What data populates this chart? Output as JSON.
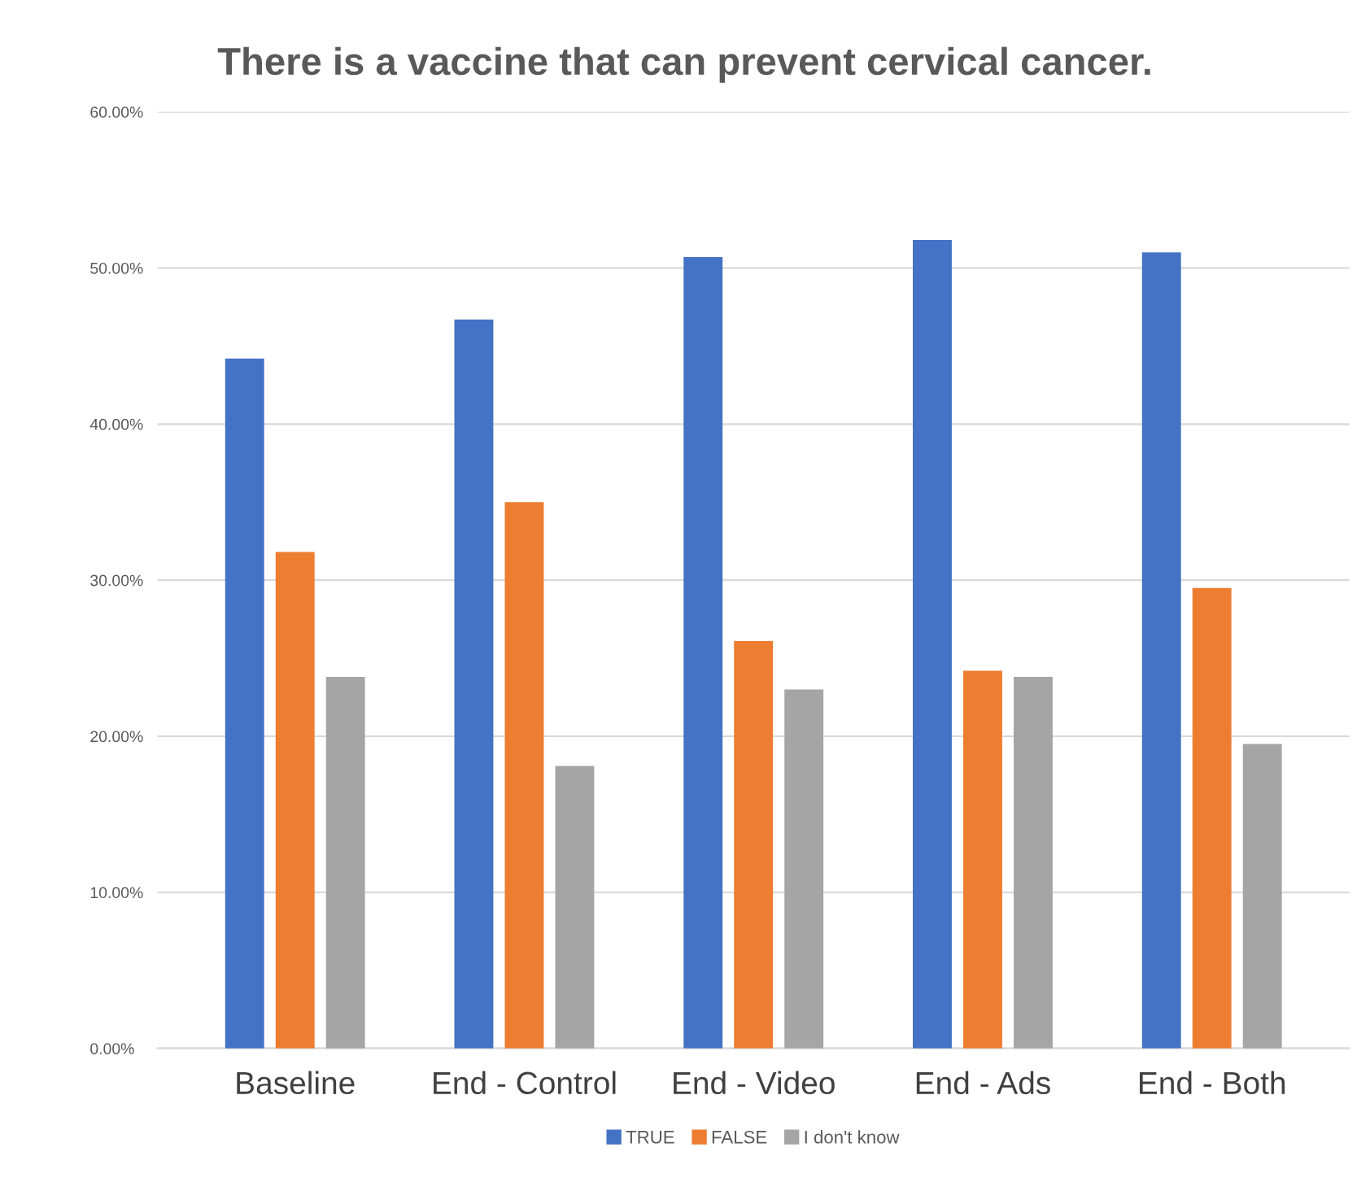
{
  "chart_data": {
    "type": "bar",
    "title": "There is a vaccine that can prevent cervical cancer.",
    "categories": [
      "Baseline",
      "End - Control",
      "End - Video",
      "End - Ads",
      "End - Both"
    ],
    "series": [
      {
        "name": "TRUE",
        "color": "#4472c4",
        "values": [
          44.2,
          46.7,
          50.7,
          51.8,
          51.0
        ]
      },
      {
        "name": "FALSE",
        "color": "#ed7d31",
        "values": [
          31.8,
          35.0,
          26.1,
          24.2,
          29.5
        ]
      },
      {
        "name": "I don't know",
        "color": "#a5a5a5",
        "values": [
          23.8,
          18.1,
          23.0,
          23.8,
          19.5
        ]
      }
    ],
    "ylim": [
      0,
      60
    ],
    "yticks": [
      {
        "value": 0,
        "label": "0.00%"
      },
      {
        "value": 10,
        "label": "10.00%"
      },
      {
        "value": 20,
        "label": "20.00%"
      },
      {
        "value": 30,
        "label": "30.00%"
      },
      {
        "value": 40,
        "label": "40.00%"
      },
      {
        "value": 50,
        "label": "50.00%"
      },
      {
        "value": 60,
        "label": "60.00%"
      }
    ],
    "grid": "y",
    "legend": "bottom"
  }
}
